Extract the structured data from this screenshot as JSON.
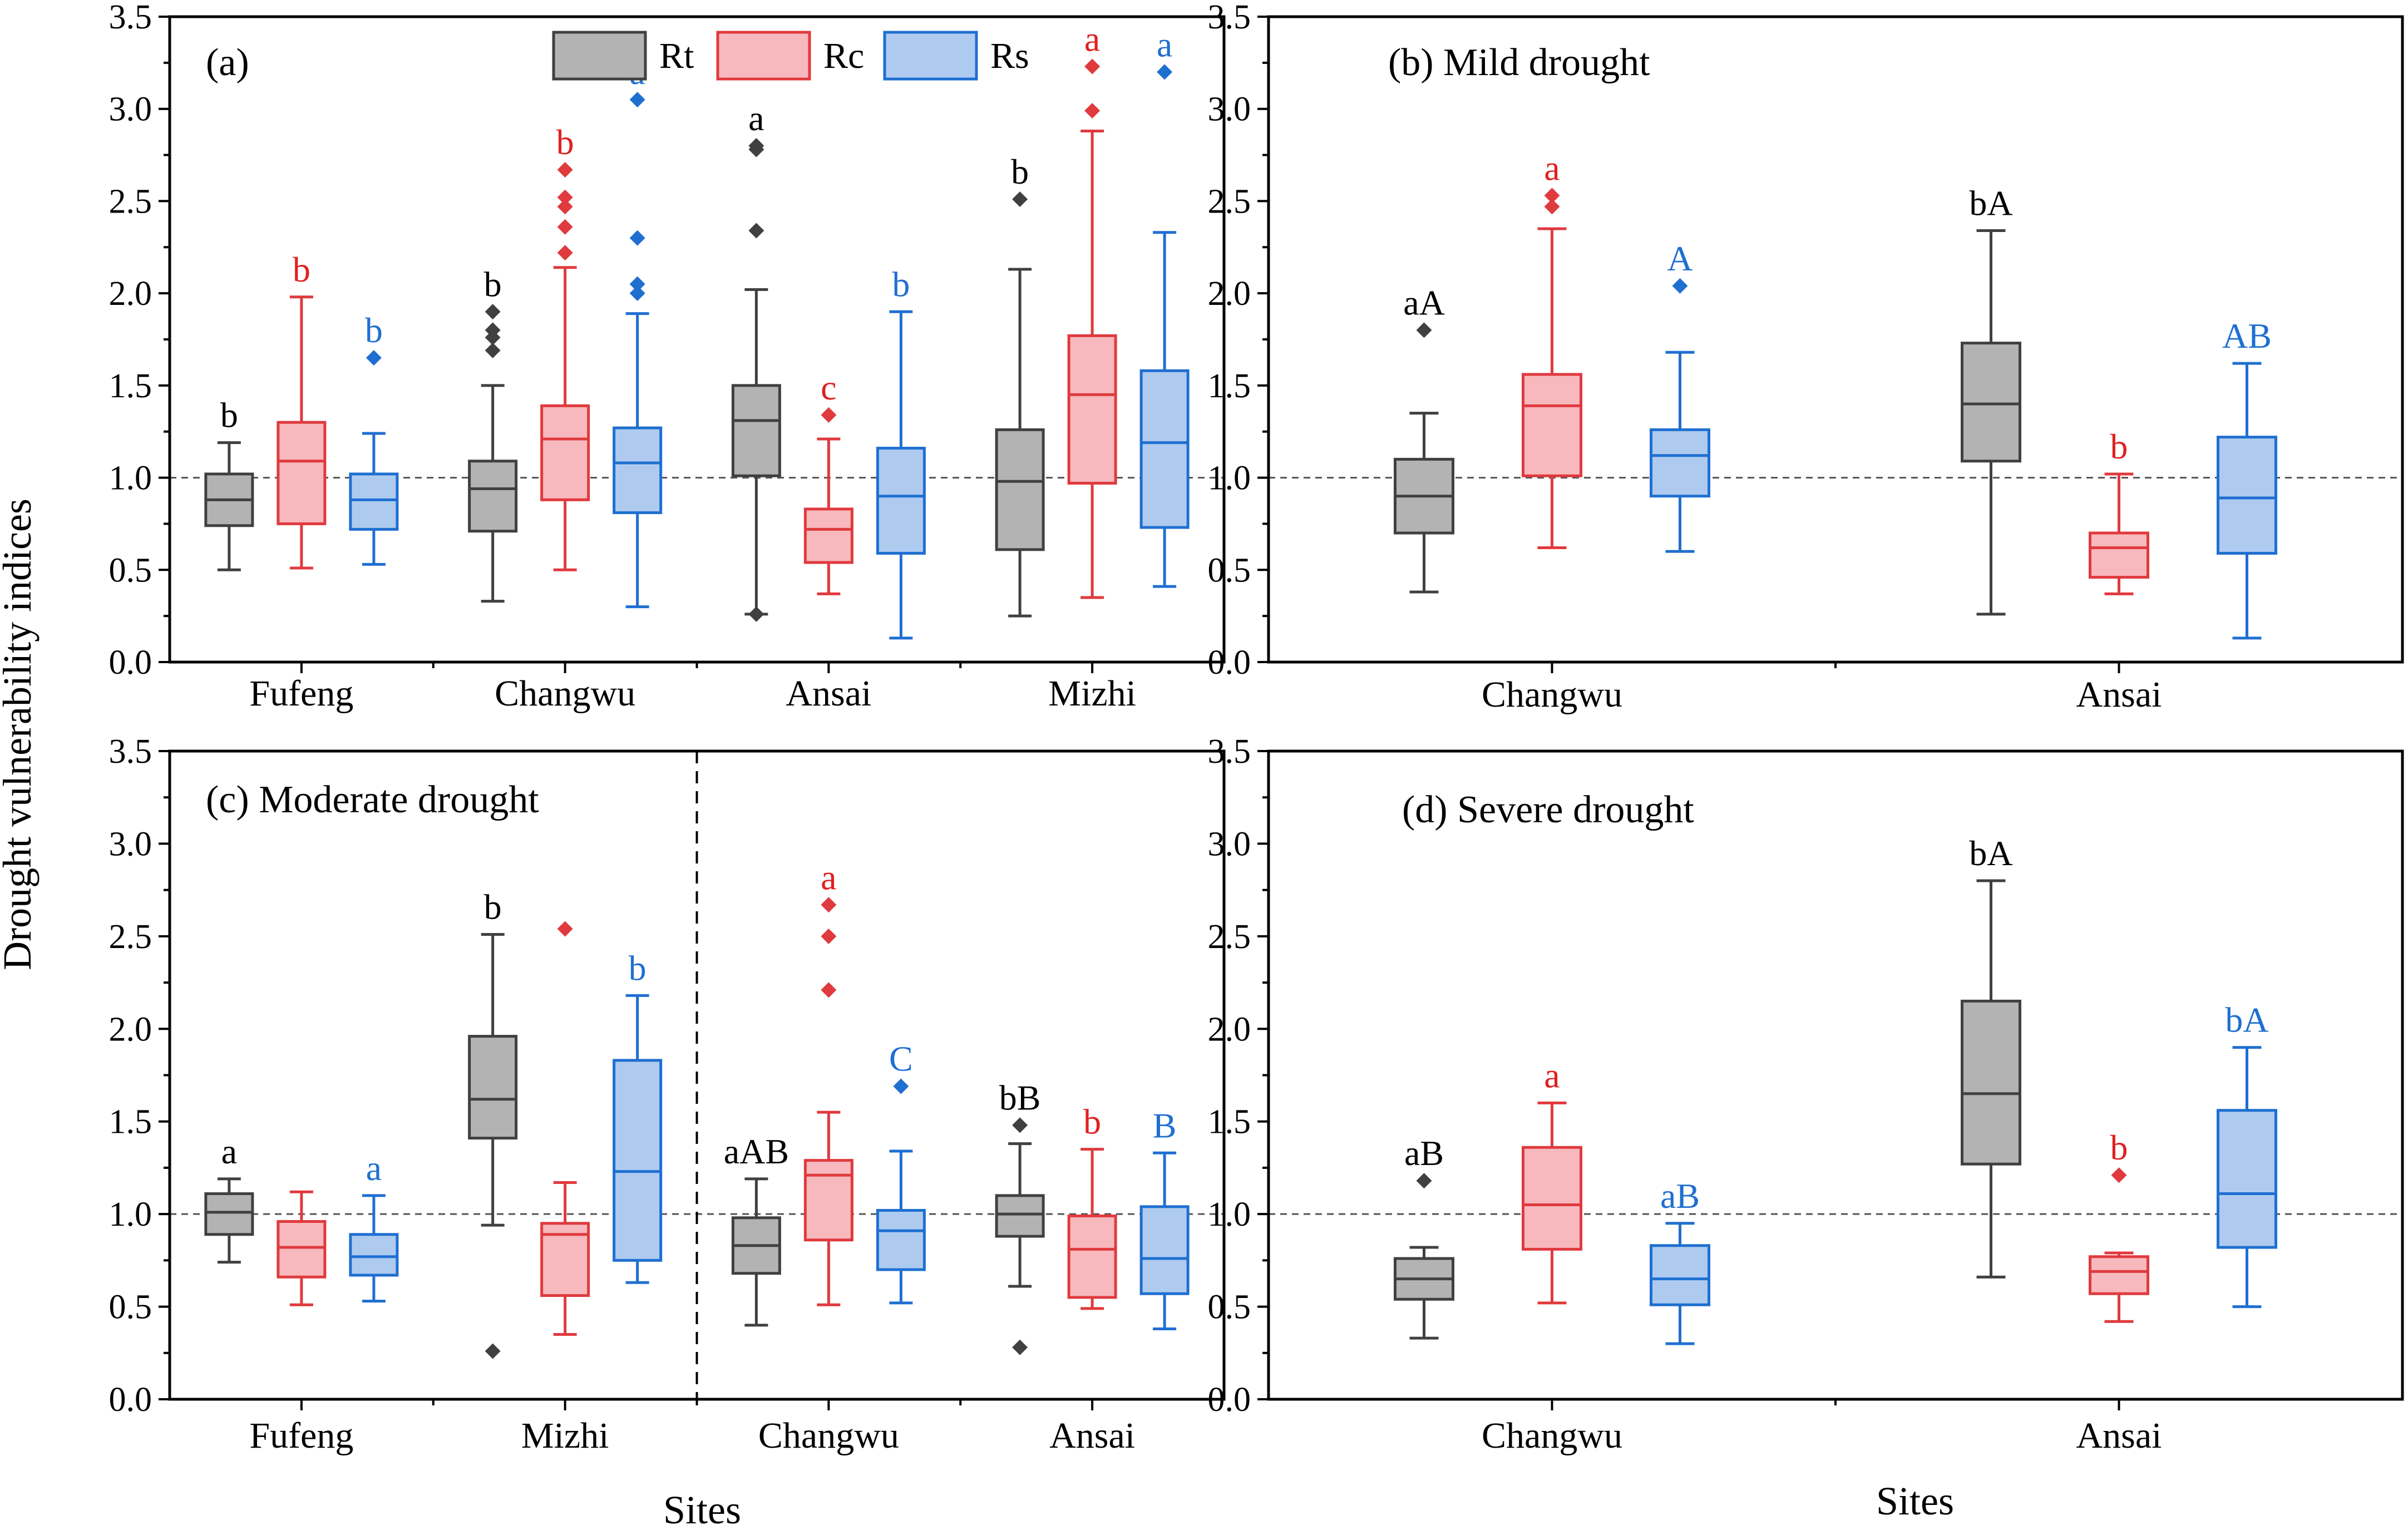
{
  "figure": {
    "ylabel": "Drought vulnerability indices",
    "xlabel": "Sites"
  },
  "colors": {
    "Rt": {
      "fill": "#b3b3b3",
      "stroke": "#404040",
      "outlier": "#404040",
      "text": "#000000"
    },
    "Rc": {
      "fill": "#f7b9bd",
      "stroke": "#e03a3e",
      "outlier": "#e03a3e",
      "text": "#e02020"
    },
    "Rs": {
      "fill": "#aecbef",
      "stroke": "#1f6fd1",
      "outlier": "#1f6fd1",
      "text": "#1f6fd1"
    }
  },
  "chart_data": [
    {
      "id": "a",
      "type": "box",
      "title": "(a)",
      "ylim": [
        0,
        3.5
      ],
      "yticks": [
        "0.0",
        "0.5",
        "1.0",
        "1.5",
        "2.0",
        "2.5",
        "3.0",
        "3.5"
      ],
      "reference_line": 1.0,
      "legend": [
        "Rt",
        "Rc",
        "Rs"
      ],
      "categories": [
        "Fufeng",
        "Changwu",
        "Ansai",
        "Mizhi"
      ],
      "boxes": [
        {
          "cat": 0,
          "series": "Rt",
          "min": 0.5,
          "q1": 0.74,
          "median": 0.88,
          "q3": 1.02,
          "max": 1.19,
          "outliers": [],
          "label": "b"
        },
        {
          "cat": 0,
          "series": "Rc",
          "min": 0.51,
          "q1": 0.75,
          "median": 1.09,
          "q3": 1.3,
          "max": 1.98,
          "outliers": [],
          "label": "b"
        },
        {
          "cat": 0,
          "series": "Rs",
          "min": 0.53,
          "q1": 0.72,
          "median": 0.88,
          "q3": 1.02,
          "max": 1.24,
          "outliers": [
            1.65
          ],
          "label": "b"
        },
        {
          "cat": 1,
          "series": "Rt",
          "min": 0.33,
          "q1": 0.71,
          "median": 0.94,
          "q3": 1.09,
          "max": 1.5,
          "outliers": [
            1.69,
            1.76,
            1.8,
            1.9
          ],
          "label": "b"
        },
        {
          "cat": 1,
          "series": "Rc",
          "min": 0.5,
          "q1": 0.88,
          "median": 1.21,
          "q3": 1.39,
          "max": 2.14,
          "outliers": [
            2.22,
            2.36,
            2.47,
            2.52,
            2.67
          ],
          "label": "b"
        },
        {
          "cat": 1,
          "series": "Rs",
          "min": 0.3,
          "q1": 0.81,
          "median": 1.08,
          "q3": 1.27,
          "max": 1.89,
          "outliers": [
            2.0,
            2.05,
            2.3,
            3.05
          ],
          "label": "a"
        },
        {
          "cat": 2,
          "series": "Rt",
          "min": 0.26,
          "q1": 1.01,
          "median": 1.31,
          "q3": 1.5,
          "max": 2.02,
          "outliers": [
            0.26,
            2.34,
            2.78,
            2.8
          ],
          "label": "a"
        },
        {
          "cat": 2,
          "series": "Rc",
          "min": 0.37,
          "q1": 0.54,
          "median": 0.72,
          "q3": 0.83,
          "max": 1.21,
          "outliers": [
            1.34
          ],
          "label": "c"
        },
        {
          "cat": 2,
          "series": "Rs",
          "min": 0.13,
          "q1": 0.59,
          "median": 0.9,
          "q3": 1.16,
          "max": 1.9,
          "outliers": [],
          "label": "b"
        },
        {
          "cat": 3,
          "series": "Rt",
          "min": 0.25,
          "q1": 0.61,
          "median": 0.98,
          "q3": 1.26,
          "max": 2.13,
          "outliers": [
            2.51
          ],
          "label": "b"
        },
        {
          "cat": 3,
          "series": "Rc",
          "min": 0.35,
          "q1": 0.97,
          "median": 1.45,
          "q3": 1.77,
          "max": 2.88,
          "outliers": [
            2.99,
            3.23
          ],
          "label": "a"
        },
        {
          "cat": 3,
          "series": "Rs",
          "min": 0.41,
          "q1": 0.73,
          "median": 1.19,
          "q3": 1.58,
          "max": 2.33,
          "outliers": [
            3.2
          ],
          "label": "a"
        }
      ]
    },
    {
      "id": "b",
      "type": "box",
      "title": "(b) Mild drought",
      "ylim": [
        0,
        3.5
      ],
      "yticks": [
        "0.0",
        "0.5",
        "1.0",
        "1.5",
        "2.0",
        "2.5",
        "3.0",
        "3.5"
      ],
      "reference_line": 1.0,
      "categories": [
        "Changwu",
        "Ansai"
      ],
      "boxes": [
        {
          "cat": 0,
          "series": "Rt",
          "min": 0.38,
          "q1": 0.7,
          "median": 0.9,
          "q3": 1.1,
          "max": 1.35,
          "outliers": [
            1.8
          ],
          "label": "aA"
        },
        {
          "cat": 0,
          "series": "Rc",
          "min": 0.62,
          "q1": 1.01,
          "median": 1.39,
          "q3": 1.56,
          "max": 2.35,
          "outliers": [
            2.47,
            2.53
          ],
          "label": "a"
        },
        {
          "cat": 0,
          "series": "Rs",
          "min": 0.6,
          "q1": 0.9,
          "median": 1.12,
          "q3": 1.26,
          "max": 1.68,
          "outliers": [
            2.04
          ],
          "label": "A"
        },
        {
          "cat": 1,
          "series": "Rt",
          "min": 0.26,
          "q1": 1.09,
          "median": 1.4,
          "q3": 1.73,
          "max": 2.34,
          "outliers": [],
          "label": "bA"
        },
        {
          "cat": 1,
          "series": "Rc",
          "min": 0.37,
          "q1": 0.46,
          "median": 0.62,
          "q3": 0.7,
          "max": 1.02,
          "outliers": [],
          "label": "b"
        },
        {
          "cat": 1,
          "series": "Rs",
          "min": 0.13,
          "q1": 0.59,
          "median": 0.89,
          "q3": 1.22,
          "max": 1.62,
          "outliers": [],
          "label": "AB"
        }
      ]
    },
    {
      "id": "c",
      "type": "box",
      "title": "(c) Moderate drought",
      "ylim": [
        0,
        3.5
      ],
      "yticks": [
        "0.0",
        "0.5",
        "1.0",
        "1.5",
        "2.0",
        "2.5",
        "3.0",
        "3.5"
      ],
      "reference_line": 1.0,
      "categories": [
        "Fufeng",
        "Mizhi",
        "Changwu",
        "Ansai"
      ],
      "divider_after_category": 1,
      "boxes": [
        {
          "cat": 0,
          "series": "Rt",
          "min": 0.74,
          "q1": 0.89,
          "median": 1.01,
          "q3": 1.11,
          "max": 1.19,
          "outliers": [],
          "label": "a"
        },
        {
          "cat": 0,
          "series": "Rc",
          "min": 0.51,
          "q1": 0.66,
          "median": 0.82,
          "q3": 0.96,
          "max": 1.12,
          "outliers": [],
          "label": ""
        },
        {
          "cat": 0,
          "series": "Rs",
          "min": 0.53,
          "q1": 0.67,
          "median": 0.77,
          "q3": 0.89,
          "max": 1.1,
          "outliers": [],
          "label": "a"
        },
        {
          "cat": 1,
          "series": "Rt",
          "min": 0.94,
          "q1": 1.41,
          "median": 1.62,
          "q3": 1.96,
          "max": 2.51,
          "outliers": [
            0.26
          ],
          "label": "b"
        },
        {
          "cat": 1,
          "series": "Rc",
          "min": 0.35,
          "q1": 0.56,
          "median": 0.89,
          "q3": 0.95,
          "max": 1.17,
          "outliers": [
            2.54
          ],
          "label": ""
        },
        {
          "cat": 1,
          "series": "Rs",
          "min": 0.63,
          "q1": 0.75,
          "median": 1.23,
          "q3": 1.83,
          "max": 2.18,
          "outliers": [],
          "label": "b"
        },
        {
          "cat": 2,
          "series": "Rt",
          "min": 0.4,
          "q1": 0.68,
          "median": 0.83,
          "q3": 0.98,
          "max": 1.19,
          "outliers": [],
          "label": "aAB"
        },
        {
          "cat": 2,
          "series": "Rc",
          "min": 0.51,
          "q1": 0.86,
          "median": 1.21,
          "q3": 1.29,
          "max": 1.55,
          "outliers": [
            2.21,
            2.5,
            2.67
          ],
          "label": "a"
        },
        {
          "cat": 2,
          "series": "Rs",
          "min": 0.52,
          "q1": 0.7,
          "median": 0.91,
          "q3": 1.02,
          "max": 1.34,
          "outliers": [
            1.69
          ],
          "label": "C"
        },
        {
          "cat": 3,
          "series": "Rt",
          "min": 0.61,
          "q1": 0.88,
          "median": 1.0,
          "q3": 1.1,
          "max": 1.38,
          "outliers": [
            0.28,
            1.48
          ],
          "label": "bB"
        },
        {
          "cat": 3,
          "series": "Rc",
          "min": 0.49,
          "q1": 0.55,
          "median": 0.81,
          "q3": 0.99,
          "max": 1.35,
          "outliers": [],
          "label": "b"
        },
        {
          "cat": 3,
          "series": "Rs",
          "min": 0.38,
          "q1": 0.57,
          "median": 0.76,
          "q3": 1.04,
          "max": 1.33,
          "outliers": [],
          "label": "B"
        }
      ]
    },
    {
      "id": "d",
      "type": "box",
      "title": "(d) Severe drought",
      "ylim": [
        0,
        3.5
      ],
      "yticks": [
        "0.0",
        "0.5",
        "1.0",
        "1.5",
        "2.0",
        "2.5",
        "3.0",
        "3.5"
      ],
      "reference_line": 1.0,
      "categories": [
        "Changwu",
        "Ansai"
      ],
      "boxes": [
        {
          "cat": 0,
          "series": "Rt",
          "min": 0.33,
          "q1": 0.54,
          "median": 0.65,
          "q3": 0.76,
          "max": 0.82,
          "outliers": [
            1.18
          ],
          "label": "aB"
        },
        {
          "cat": 0,
          "series": "Rc",
          "min": 0.52,
          "q1": 0.81,
          "median": 1.05,
          "q3": 1.36,
          "max": 1.6,
          "outliers": [],
          "label": "a"
        },
        {
          "cat": 0,
          "series": "Rs",
          "min": 0.3,
          "q1": 0.51,
          "median": 0.65,
          "q3": 0.83,
          "max": 0.95,
          "outliers": [],
          "label": "aB"
        },
        {
          "cat": 1,
          "series": "Rt",
          "min": 0.66,
          "q1": 1.27,
          "median": 1.65,
          "q3": 2.15,
          "max": 2.8,
          "outliers": [],
          "label": "bA"
        },
        {
          "cat": 1,
          "series": "Rc",
          "min": 0.42,
          "q1": 0.57,
          "median": 0.69,
          "q3": 0.77,
          "max": 0.79,
          "outliers": [
            1.21
          ],
          "label": "b"
        },
        {
          "cat": 1,
          "series": "Rs",
          "min": 0.5,
          "q1": 0.82,
          "median": 1.11,
          "q3": 1.56,
          "max": 1.9,
          "outliers": [],
          "label": "bA"
        }
      ]
    }
  ]
}
